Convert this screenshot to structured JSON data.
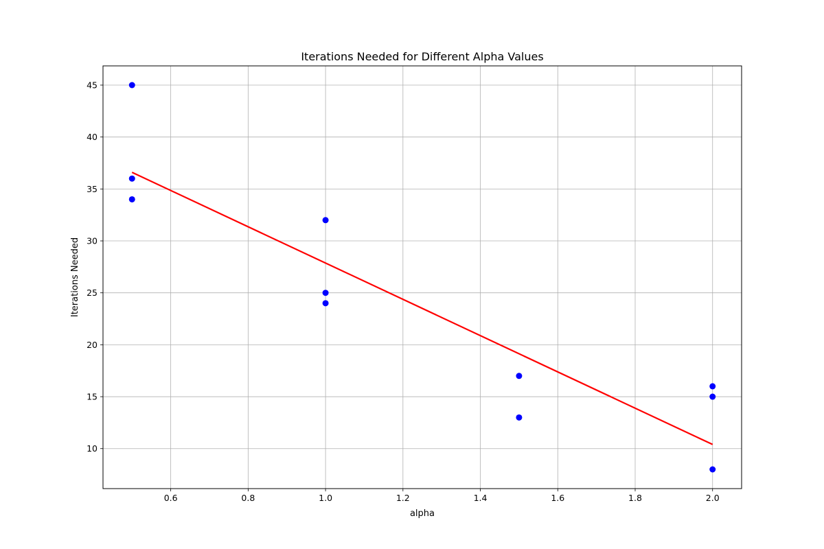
{
  "chart_data": {
    "type": "scatter",
    "title": "Iterations Needed for Different Alpha Values",
    "xlabel": "alpha",
    "ylabel": "Iterations Needed",
    "xlim": [
      0.425,
      2.075
    ],
    "ylim": [
      6.15,
      46.85
    ],
    "xticks": [
      0.6,
      0.8,
      1.0,
      1.2,
      1.4,
      1.6,
      1.8,
      2.0
    ],
    "xtick_labels": [
      "0.6",
      "0.8",
      "1.0",
      "1.2",
      "1.4",
      "1.6",
      "1.8",
      "2.0"
    ],
    "yticks": [
      10,
      15,
      20,
      25,
      30,
      35,
      40,
      45
    ],
    "ytick_labels": [
      "10",
      "15",
      "20",
      "25",
      "30",
      "35",
      "40",
      "45"
    ],
    "grid": true,
    "colors": {
      "points": "#0000ff",
      "fit_line": "#ff0000",
      "grid": "#b0b0b0",
      "axes": "#000000"
    },
    "points": {
      "x": [
        0.5,
        0.5,
        0.5,
        1.0,
        1.0,
        1.0,
        1.5,
        1.5,
        2.0,
        2.0,
        2.0
      ],
      "y": [
        45,
        36,
        34,
        32,
        25,
        24,
        17,
        13,
        16,
        15,
        8
      ]
    },
    "fit_line": {
      "x": [
        0.5,
        2.0
      ],
      "y": [
        36.6,
        10.4
      ]
    }
  }
}
